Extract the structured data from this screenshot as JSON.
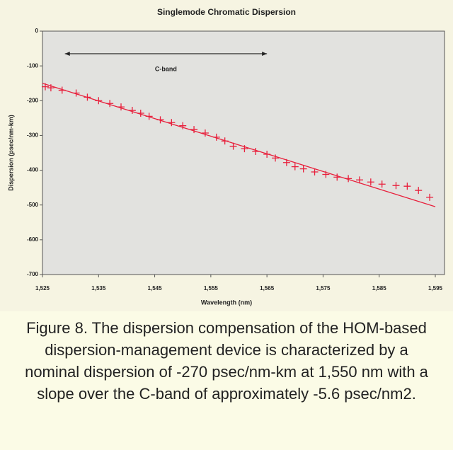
{
  "chart_data": {
    "type": "scatter",
    "title": "Singlemode Chromatic Dispersion",
    "x_label": "Wavelength (nm)",
    "y_label": "Dispersion (psec/nm-km)",
    "xlim": [
      1525,
      1595
    ],
    "xticks": [
      {
        "value": 1525,
        "label": "1,525"
      },
      {
        "value": 1535,
        "label": "1,535"
      },
      {
        "value": 1545,
        "label": "1,545"
      },
      {
        "value": 1555,
        "label": "1,555"
      },
      {
        "value": 1565,
        "label": "1,565"
      },
      {
        "value": 1575,
        "label": "1,575"
      },
      {
        "value": 1585,
        "label": "1,585"
      },
      {
        "value": 1595,
        "label": "1,595"
      }
    ],
    "ylim": [
      -700,
      0
    ],
    "yticks": [
      0,
      -100,
      -200,
      -300,
      -400,
      -500,
      -600,
      -700
    ],
    "annotation": {
      "text": "C-band",
      "x": [
        1529,
        1565
      ],
      "y": -65
    },
    "series": [
      {
        "type": "scatter",
        "color": "#e8203c",
        "x": [
          1525.5,
          1526.5,
          1528.5,
          1531,
          1533,
          1535,
          1537,
          1539,
          1541,
          1542.5,
          1544,
          1546,
          1548,
          1550,
          1552,
          1554,
          1556,
          1557.5,
          1559,
          1561,
          1563,
          1565,
          1566.5,
          1568.5,
          1570,
          1571.5,
          1573.5,
          1575.5,
          1577.5,
          1579.5,
          1581.5,
          1583.5,
          1585.5,
          1588,
          1590,
          1592,
          1594
        ],
        "values": [
          -160,
          -163,
          -170,
          -178,
          -190,
          -200,
          -208,
          -218,
          -228,
          -236,
          -245,
          -255,
          -263,
          -272,
          -283,
          -293,
          -305,
          -316,
          -331,
          -338,
          -346,
          -354,
          -365,
          -378,
          -390,
          -396,
          -405,
          -412,
          -420,
          -424,
          -428,
          -434,
          -440,
          -444,
          -446,
          -458,
          -478
        ]
      },
      {
        "type": "line",
        "color": "#e8203c",
        "x": [
          1525,
          1595
        ],
        "values": [
          -150,
          -505
        ]
      }
    ]
  },
  "caption": "Figure 8. The dispersion compensation of the HOM-based dispersion-management device is characterized by a nominal dispersion of -270 psec/nm-km at 1,550 nm with a slope over the C-band of approximately -5.6 psec/nm2."
}
